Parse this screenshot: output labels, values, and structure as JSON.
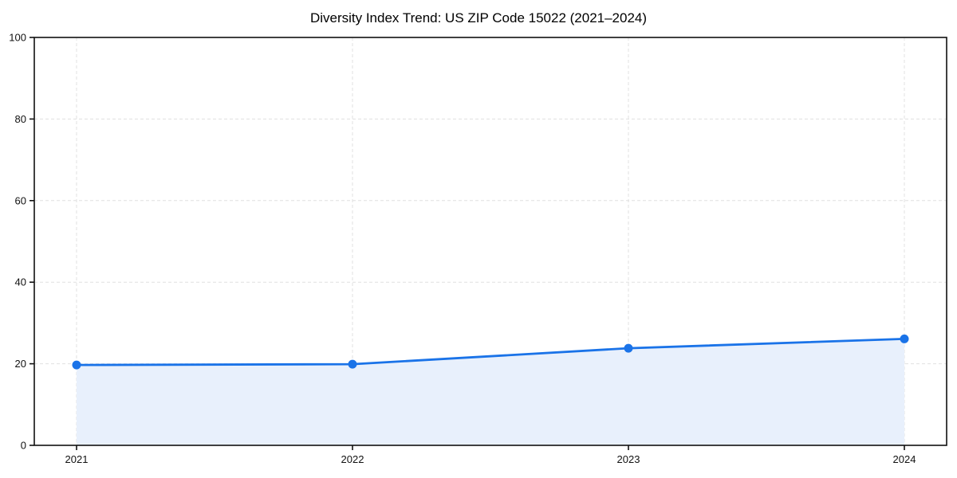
{
  "chart_data": {
    "type": "area",
    "title": "Diversity Index Trend: US ZIP Code 15022 (2021–2024)",
    "categories": [
      "2021",
      "2022",
      "2023",
      "2024"
    ],
    "series": [
      {
        "name": "Diversity Index",
        "values": [
          19.7,
          19.9,
          23.8,
          26.1
        ]
      }
    ],
    "xlabel": "",
    "ylabel": "",
    "ylim": [
      0,
      100
    ],
    "yticks": [
      0,
      20,
      40,
      60,
      80,
      100
    ],
    "grid": true,
    "grid_style": "dashed",
    "legend": "none",
    "marker": "circle",
    "colors": {
      "line": "#1a73e8",
      "marker": "#1a73e8",
      "fill": "#e8f0fc",
      "grid": "#e0e0e0",
      "frame": "#111111",
      "text": "#111111",
      "background": "#ffffff"
    }
  }
}
